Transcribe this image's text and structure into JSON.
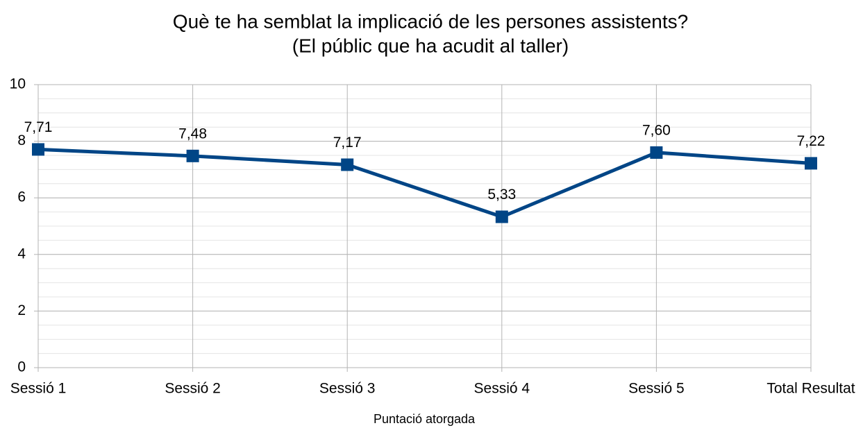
{
  "chart_data": {
    "type": "line",
    "title": [
      "Què te ha semblat la implicació de les persones assistents?",
      "(El públic que ha acudit al taller)"
    ],
    "x_label": "Puntació atorgada",
    "categories": [
      "Sessió 1",
      "Sessió 2",
      "Sessió 3",
      "Sessió 4",
      "Sessió 5",
      "Total Resultat"
    ],
    "series": [
      {
        "name": "Puntació atorgada",
        "color": "#004586",
        "values": [
          7.71,
          7.48,
          7.17,
          5.33,
          7.6,
          7.22
        ],
        "value_labels": [
          "7,71",
          "7,48",
          "7,17",
          "5,33",
          "7,60",
          "7,22"
        ]
      }
    ],
    "ylim": [
      0,
      10
    ],
    "yticks": [
      0,
      2,
      4,
      6,
      8,
      10
    ],
    "yminor_step": 0.5,
    "grid": true
  }
}
